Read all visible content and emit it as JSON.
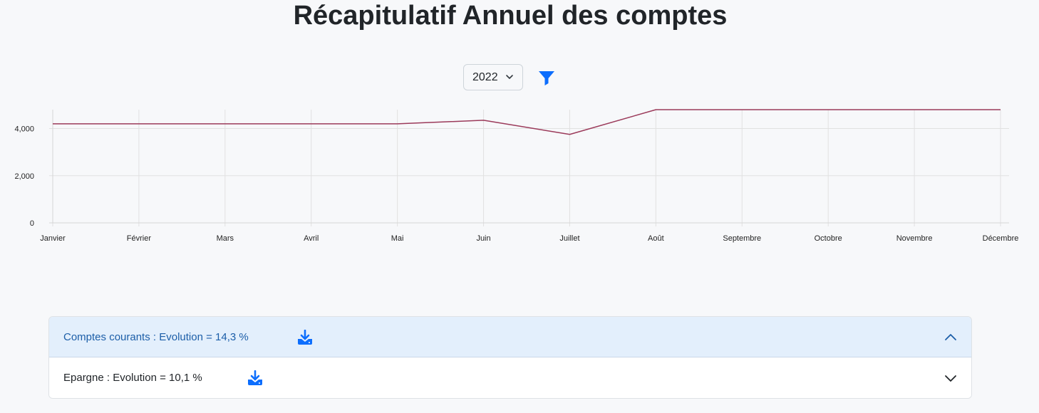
{
  "page": {
    "title": "Récapitulatif Annuel des comptes"
  },
  "filters": {
    "year_value": "2022",
    "year_icon": "chevron-down-icon",
    "filter_icon": "filter-icon",
    "filter_color": "#0d6efd"
  },
  "chart_data": {
    "type": "line",
    "title": "",
    "xlabel": "",
    "ylabel": "",
    "categories": [
      "Janvier",
      "Février",
      "Mars",
      "Avril",
      "Mai",
      "Juin",
      "Juillet",
      "Août",
      "Septembre",
      "Octobre",
      "Novembre",
      "Décembre"
    ],
    "series": [
      {
        "values": [
          4200,
          4200,
          4200,
          4200,
          4200,
          4350,
          3750,
          4800,
          4800,
          4800,
          4800,
          4800
        ],
        "color": "#9b3a5a"
      }
    ],
    "yticks": [
      {
        "value": 0,
        "label": "0"
      },
      {
        "value": 2000,
        "label": "2,000"
      },
      {
        "value": 4000,
        "label": "4,000"
      }
    ],
    "ylim": [
      0,
      4800
    ],
    "grid": true,
    "legend": "none"
  },
  "accordion": {
    "items": [
      {
        "label": "Comptes courants : Evolution = 14,3 %",
        "expanded": true,
        "download_icon": "download-icon",
        "toggle_icon": "chevron-up-icon"
      },
      {
        "label": "Epargne : Evolution = 10,1 %",
        "expanded": false,
        "download_icon": "download-icon",
        "toggle_icon": "chevron-down-icon"
      }
    ],
    "accent_color": "#0d6efd"
  }
}
